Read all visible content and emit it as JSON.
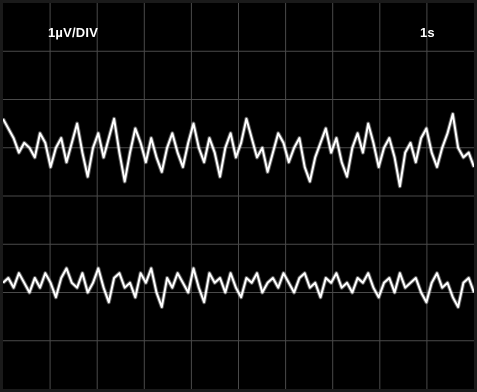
{
  "scope": {
    "vertical_scale": "1µV/DIV",
    "time_scale": "1s",
    "background": "#000000",
    "trace_color": "#ffffff",
    "grid_color": "#4a4a4a"
  },
  "chart_data": {
    "type": "line",
    "title": "",
    "xlabel": "",
    "ylabel": "",
    "grid": true,
    "grid_divisions": {
      "x": 10,
      "y": 8
    },
    "xlim": [
      0,
      10
    ],
    "ylim": [
      -4,
      4
    ],
    "series": [
      {
        "values": [
          1.6,
          1.4,
          1.2,
          0.9,
          1.1,
          1.0,
          0.8,
          1.3,
          1.1,
          0.6,
          1.0,
          1.2,
          0.7,
          1.1,
          1.5,
          0.9,
          0.4,
          1.0,
          1.3,
          0.8,
          1.2,
          1.6,
          0.9,
          0.3,
          0.9,
          1.4,
          1.1,
          0.7,
          1.2,
          0.8,
          0.5,
          1.0,
          1.3,
          0.9,
          0.6,
          1.1,
          1.5,
          1.0,
          0.7,
          1.2,
          0.9,
          0.4,
          1.0,
          1.3,
          0.8,
          1.1,
          1.6,
          1.2,
          0.8,
          1.0,
          0.5,
          0.9,
          1.3,
          1.1,
          0.7,
          1.0,
          1.2,
          0.6,
          0.3,
          0.8,
          1.1,
          1.4,
          0.9,
          1.2,
          0.7,
          0.4,
          1.0,
          1.3,
          0.9,
          1.5,
          1.1,
          0.6,
          1.0,
          1.2,
          0.8,
          0.2,
          0.9,
          1.1,
          0.7,
          1.2,
          1.4,
          0.9,
          0.6,
          1.0,
          1.3,
          1.7,
          1.0,
          0.8,
          0.9,
          0.6
        ]
      },
      {
        "values": [
          -1.8,
          -1.7,
          -1.9,
          -1.6,
          -1.8,
          -2.0,
          -1.7,
          -1.9,
          -1.6,
          -1.8,
          -2.1,
          -1.7,
          -1.5,
          -1.8,
          -1.9,
          -1.6,
          -2.0,
          -1.8,
          -1.5,
          -1.9,
          -2.2,
          -1.7,
          -1.6,
          -1.9,
          -1.8,
          -2.1,
          -1.6,
          -1.8,
          -1.5,
          -2.0,
          -2.3,
          -1.7,
          -1.9,
          -1.6,
          -1.8,
          -2.0,
          -1.5,
          -1.9,
          -2.2,
          -1.6,
          -1.8,
          -1.7,
          -2.0,
          -1.6,
          -1.9,
          -2.1,
          -1.7,
          -1.8,
          -1.6,
          -2.0,
          -1.8,
          -1.7,
          -1.9,
          -1.6,
          -1.8,
          -2.0,
          -1.7,
          -1.6,
          -1.9,
          -1.8,
          -2.1,
          -1.7,
          -1.8,
          -1.6,
          -1.9,
          -1.8,
          -2.0,
          -1.7,
          -1.8,
          -1.6,
          -1.9,
          -2.1,
          -1.8,
          -1.7,
          -2.0,
          -1.6,
          -1.9,
          -1.8,
          -1.7,
          -2.0,
          -2.2,
          -1.8,
          -1.6,
          -1.9,
          -1.8,
          -2.1,
          -2.3,
          -1.8,
          -1.7,
          -2.0
        ]
      }
    ]
  }
}
